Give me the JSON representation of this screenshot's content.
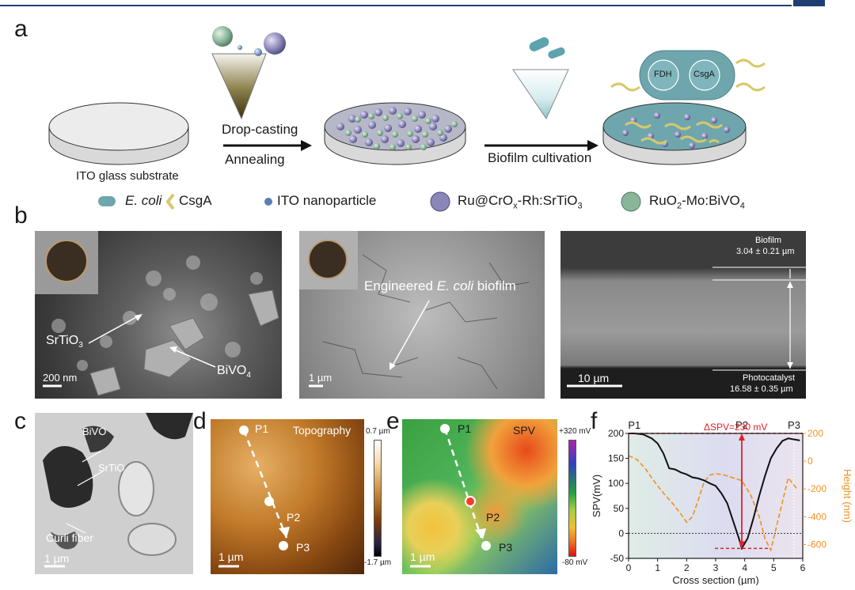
{
  "header": {
    "rule_color": "#1f3f73",
    "tab_color": "#1f3f73"
  },
  "panel_labels": {
    "a": "a",
    "b": "b",
    "c": "c",
    "d": "d",
    "e": "e",
    "f": "f"
  },
  "schematic": {
    "substrate_label": "ITO glass substrate",
    "step1_top": "Drop-casting",
    "step1_bottom": "Annealing",
    "step2_label": "Biofilm cultivation",
    "cell_enzyme_1": "FDH",
    "cell_enzyme_2": "CsgA"
  },
  "legend": {
    "items": [
      {
        "icon": "e-coli-icon",
        "text": "E. coli",
        "italic": true
      },
      {
        "icon": "csga-icon",
        "text": "CsgA",
        "italic": false
      },
      {
        "icon": "ito-nanoparticle-icon",
        "text": "ITO nanoparticle",
        "italic": false
      },
      {
        "icon": "srtio3-particle-icon",
        "text_html": "Ru@CrO<sub>x</sub>-Rh:SrTiO<sub>3</sub>"
      },
      {
        "icon": "bivo4-particle-icon",
        "text_html": "RuO<sub>2</sub>-Mo:BiVO<sub>4</sub>"
      }
    ]
  },
  "panel_b": {
    "left": {
      "label_srtio3": "SrTiO",
      "label_srtio3_sub": "3",
      "label_bivo4": "BiVO",
      "label_bivo4_sub": "4",
      "scale": "200 nm"
    },
    "middle": {
      "label_prefix": "Engineered ",
      "label_italic": "E. coli",
      "label_suffix": " biofilm",
      "scale": "1 µm"
    },
    "right": {
      "biofilm_label": "Biofilm",
      "biofilm_value": "3.04 ± 0.21 µm",
      "photocat_label": "Photocatalyst",
      "photocat_value": "16.58 ± 0.35 µm",
      "scale": "10 µm"
    }
  },
  "panel_c": {
    "label_bivo": "BiVO",
    "label_srtio": "SrTiO",
    "label_curli": "Curli fiber",
    "scale": "1 µm"
  },
  "panel_d": {
    "title": "Topography",
    "p1": "P1",
    "p2": "P2",
    "p3": "P3",
    "cbar_max": "0.7 µm",
    "cbar_min": "-1.7 µm",
    "scale": "1 µm"
  },
  "panel_e": {
    "title": "SPV",
    "p1": "P1",
    "p2": "P2",
    "p3": "P3",
    "cbar_max": "+320 mV",
    "cbar_min": "-80 mV",
    "scale": "1 µm"
  },
  "chart_data": {
    "type": "line",
    "title": "",
    "xlabel": "Cross section (µm)",
    "ylabel": "SPV(mV)",
    "y2label": "Height (nm)",
    "xlim": [
      0,
      6
    ],
    "ylim": [
      -50,
      200
    ],
    "y2lim": [
      -700,
      200
    ],
    "xticks": [
      0,
      1,
      2,
      3,
      4,
      5,
      6
    ],
    "yticks": [
      -50,
      0,
      50,
      100,
      150,
      200
    ],
    "y2ticks": [
      -600,
      -400,
      -200,
      0,
      200
    ],
    "markers": [
      {
        "label": "P1",
        "x": 0.2
      },
      {
        "label": "P2",
        "x": 3.9
      },
      {
        "label": "P3",
        "x": 5.7
      }
    ],
    "annotation": "ΔSPV=230 mV",
    "colors": {
      "spv": "#111111",
      "height": "#f0901e",
      "annotation": "#e0202a"
    },
    "series": [
      {
        "name": "SPV",
        "axis": "left",
        "x": [
          0,
          0.2,
          0.5,
          0.8,
          1.0,
          1.2,
          1.4,
          1.6,
          1.8,
          2.0,
          2.2,
          2.4,
          2.6,
          2.8,
          3.0,
          3.2,
          3.4,
          3.6,
          3.8,
          3.9,
          4.1,
          4.3,
          4.5,
          4.7,
          4.9,
          5.1,
          5.3,
          5.5,
          5.7,
          5.9
        ],
        "y": [
          200,
          200,
          198,
          190,
          180,
          160,
          130,
          128,
          122,
          118,
          112,
          110,
          106,
          100,
          95,
          80,
          60,
          25,
          -10,
          -30,
          -10,
          30,
          75,
          115,
          150,
          170,
          185,
          190,
          188,
          186
        ]
      },
      {
        "name": "Height",
        "axis": "right",
        "x": [
          0,
          0.3,
          0.6,
          0.9,
          1.2,
          1.5,
          1.8,
          2.0,
          2.2,
          2.4,
          2.6,
          2.8,
          3.0,
          3.3,
          3.6,
          3.9,
          4.2,
          4.5,
          4.7,
          4.9,
          5.2,
          5.5,
          5.8
        ],
        "y": [
          40,
          10,
          -60,
          -150,
          -230,
          -300,
          -380,
          -440,
          -400,
          -280,
          -150,
          -100,
          -90,
          -100,
          -120,
          -140,
          -240,
          -400,
          -560,
          -640,
          -380,
          -120,
          -200
        ]
      }
    ]
  }
}
